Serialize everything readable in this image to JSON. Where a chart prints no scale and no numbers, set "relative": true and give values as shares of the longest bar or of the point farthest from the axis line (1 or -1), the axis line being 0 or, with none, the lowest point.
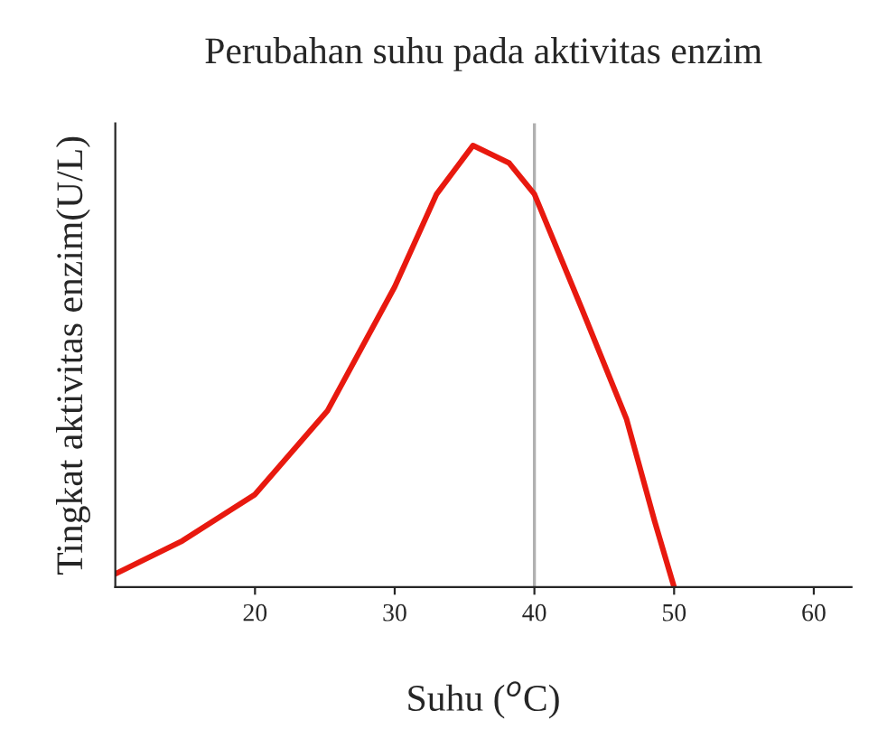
{
  "chart_data": {
    "type": "line",
    "title": "Perubahan suhu pada aktivitas enzim",
    "xlabel": "Suhu ($^{o}$C)",
    "ylabel": "Tingkat aktivitas enzim(U/L)",
    "relative": true,
    "x": [
      10,
      14.8,
      20,
      25.2,
      30,
      33,
      35.6,
      38.2,
      40,
      43.4,
      46.6,
      48.6,
      50
    ],
    "series": [
      {
        "color": "#e8190f",
        "values": [
          0.03,
          0.105,
          0.21,
          0.4,
          0.68,
          0.89,
          1,
          0.96,
          0.89,
          0.63,
          0.38,
          0.15,
          0
        ]
      }
    ],
    "xlim": [
      10,
      62.7
    ],
    "xticks": [
      20,
      30,
      40,
      50,
      60
    ],
    "ref_lines": [
      {
        "axis": "x",
        "value": 40,
        "color": "#b0b0b0"
      }
    ],
    "legend": false
  }
}
